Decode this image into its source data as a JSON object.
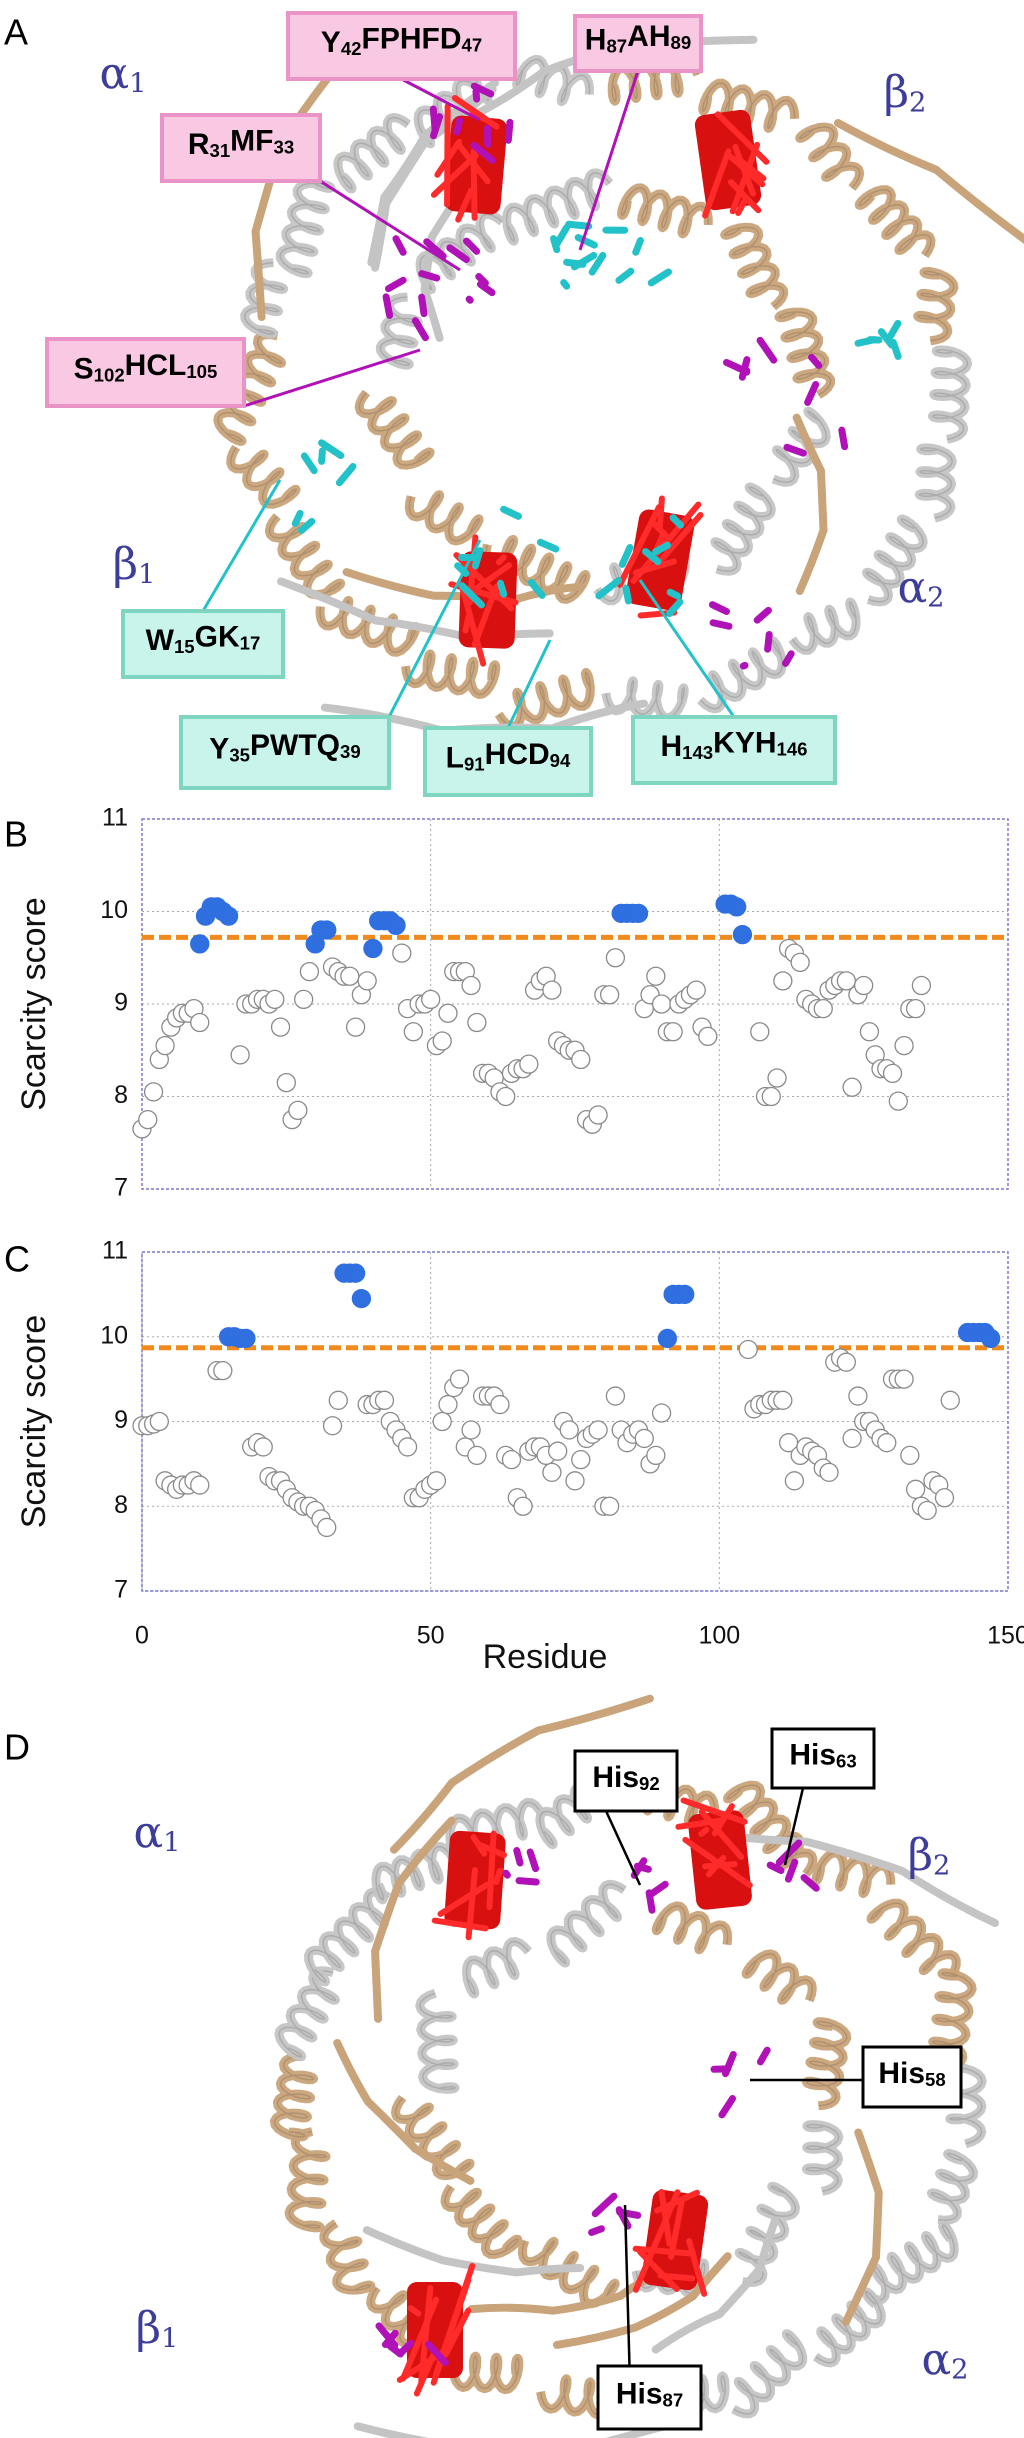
{
  "panel_labels": [
    "A",
    "B",
    "C",
    "D"
  ],
  "structure_a": {
    "chain_labels": [
      [
        "α",
        "1"
      ],
      [
        "β",
        "2"
      ],
      [
        "β",
        "1"
      ],
      [
        "α",
        "2"
      ]
    ],
    "pink_sites": [
      [
        "Y",
        "42",
        "FPHFD",
        "47"
      ],
      [
        "H",
        "87",
        "AH",
        "89"
      ],
      [
        "R",
        "31",
        "MF",
        "33"
      ],
      [
        "S",
        "102",
        "HCL",
        "105"
      ]
    ],
    "cyan_sites": [
      [
        "W",
        "15",
        "GK",
        "17"
      ],
      [
        "Y",
        "35",
        "PWTQ",
        "39"
      ],
      [
        "L",
        "91",
        "HCD",
        "94"
      ],
      [
        "H",
        "143",
        "KYH",
        "146"
      ]
    ]
  },
  "structure_d": {
    "chain_labels": [
      [
        "α",
        "1"
      ],
      [
        "β",
        "2"
      ],
      [
        "β",
        "1"
      ],
      [
        "α",
        "2"
      ]
    ],
    "sites": [
      [
        "His",
        "92"
      ],
      [
        "His",
        "63"
      ],
      [
        "His",
        "58"
      ],
      [
        "His",
        "87"
      ]
    ]
  },
  "chart_data": [
    {
      "type": "scatter",
      "y_label": "Scarcity score",
      "xlim": [
        0,
        150
      ],
      "xticks": [
        0,
        50,
        100,
        150
      ],
      "ylim": [
        7,
        11
      ],
      "yticks": [
        7,
        8,
        9,
        10,
        11
      ],
      "grid": true,
      "threshold": 9.72,
      "threshold_color": "#f08a1c",
      "series": [
        {
          "color": "#ffffff",
          "x": [
            0,
            1,
            2,
            3,
            4,
            5,
            6,
            7,
            8,
            9,
            10,
            17,
            18,
            19,
            20,
            21,
            22,
            23,
            24,
            25,
            26,
            27,
            28,
            29,
            33,
            34,
            35,
            36,
            37,
            38,
            39,
            45,
            46,
            47,
            48,
            49,
            50,
            51,
            52,
            53,
            54,
            55,
            56,
            57,
            58,
            59,
            60,
            61,
            62,
            63,
            64,
            65,
            66,
            67,
            68,
            69,
            70,
            71,
            72,
            73,
            74,
            75,
            76,
            77,
            78,
            79,
            80,
            81,
            82,
            87,
            88,
            89,
            90,
            91,
            92,
            93,
            94,
            95,
            96,
            97,
            98,
            107,
            108,
            109,
            110,
            111,
            112,
            113,
            114,
            115,
            116,
            117,
            118,
            119,
            120,
            121,
            122,
            123,
            124,
            125,
            126,
            127,
            128,
            129,
            130,
            131,
            132,
            133,
            134,
            135
          ],
          "values": [
            7.65,
            7.75,
            8.05,
            8.4,
            8.55,
            8.75,
            8.85,
            8.9,
            8.9,
            8.95,
            8.8,
            8.45,
            9.0,
            9.0,
            9.05,
            9.05,
            9.0,
            9.05,
            8.75,
            8.15,
            7.75,
            7.85,
            9.05,
            9.35,
            9.4,
            9.35,
            9.3,
            9.3,
            8.75,
            9.1,
            9.25,
            9.55,
            8.95,
            8.7,
            9.0,
            9.0,
            9.05,
            8.55,
            8.6,
            8.9,
            9.35,
            9.35,
            9.35,
            9.2,
            8.8,
            8.25,
            8.25,
            8.2,
            8.05,
            8.0,
            8.25,
            8.3,
            8.3,
            8.35,
            9.15,
            9.25,
            9.3,
            9.15,
            8.6,
            8.55,
            8.5,
            8.5,
            8.4,
            7.75,
            7.7,
            7.8,
            9.1,
            9.1,
            9.5,
            8.95,
            9.1,
            9.3,
            9.0,
            8.7,
            8.7,
            9.0,
            9.05,
            9.1,
            9.15,
            8.75,
            8.65,
            8.7,
            8.0,
            8.0,
            8.2,
            9.25,
            9.6,
            9.55,
            9.45,
            9.05,
            9.0,
            8.95,
            8.95,
            9.15,
            9.2,
            9.25,
            9.25,
            8.1,
            9.1,
            9.2,
            8.7,
            8.45,
            8.3,
            8.3,
            8.25,
            7.95,
            8.55,
            8.95,
            8.95,
            9.2
          ]
        },
        {
          "color": "#2f6fe0",
          "x": [
            10,
            11,
            12,
            13,
            14,
            15,
            30,
            31,
            32,
            40,
            41,
            42,
            43,
            44,
            83,
            84,
            85,
            86,
            101,
            102,
            103,
            104
          ],
          "values": [
            9.65,
            9.95,
            10.05,
            10.05,
            10.0,
            9.95,
            9.65,
            9.8,
            9.8,
            9.6,
            9.9,
            9.9,
            9.9,
            9.85,
            9.98,
            9.98,
            9.98,
            9.98,
            10.08,
            10.08,
            10.05,
            9.75
          ]
        }
      ]
    },
    {
      "type": "scatter",
      "y_label": "Scarcity score",
      "x_label": "Residue",
      "xlim": [
        0,
        150
      ],
      "xticks": [
        0,
        50,
        100,
        150
      ],
      "ylim": [
        7,
        11
      ],
      "yticks": [
        7,
        8,
        9,
        10,
        11
      ],
      "grid": true,
      "threshold": 9.87,
      "threshold_color": "#f08a1c",
      "series": [
        {
          "color": "#ffffff",
          "x": [
            0,
            1,
            2,
            3,
            4,
            5,
            6,
            7,
            8,
            9,
            10,
            13,
            14,
            19,
            20,
            21,
            22,
            23,
            24,
            25,
            26,
            27,
            28,
            29,
            30,
            31,
            32,
            33,
            34,
            39,
            40,
            41,
            42,
            43,
            44,
            45,
            46,
            47,
            48,
            49,
            50,
            51,
            52,
            53,
            54,
            55,
            56,
            57,
            58,
            59,
            60,
            61,
            62,
            63,
            64,
            65,
            66,
            67,
            68,
            69,
            70,
            71,
            72,
            73,
            74,
            75,
            76,
            77,
            78,
            79,
            80,
            81,
            82,
            83,
            84,
            85,
            86,
            87,
            88,
            89,
            90,
            105,
            106,
            107,
            108,
            109,
            110,
            111,
            112,
            113,
            114,
            115,
            116,
            117,
            118,
            119,
            120,
            121,
            122,
            123,
            124,
            125,
            126,
            127,
            128,
            129,
            130,
            131,
            132,
            133,
            134,
            135,
            136,
            137,
            138,
            139,
            140
          ],
          "values": [
            8.95,
            8.95,
            8.97,
            9.0,
            8.3,
            8.25,
            8.2,
            8.25,
            8.25,
            8.3,
            8.25,
            9.6,
            9.6,
            8.7,
            8.75,
            8.7,
            8.35,
            8.3,
            8.3,
            8.2,
            8.1,
            8.05,
            8.0,
            8.0,
            7.95,
            7.85,
            7.75,
            8.95,
            9.25,
            9.2,
            9.2,
            9.25,
            9.25,
            9.0,
            8.9,
            8.8,
            8.7,
            8.1,
            8.1,
            8.2,
            8.25,
            8.3,
            9.0,
            9.2,
            9.4,
            9.5,
            8.7,
            8.9,
            8.6,
            9.3,
            9.3,
            9.3,
            9.2,
            8.6,
            8.55,
            8.1,
            8.0,
            8.65,
            8.7,
            8.7,
            8.6,
            8.4,
            8.65,
            9.0,
            8.9,
            8.3,
            8.55,
            8.8,
            8.85,
            8.9,
            8.0,
            8.0,
            9.3,
            8.9,
            8.75,
            8.85,
            8.9,
            8.8,
            8.5,
            8.6,
            9.1,
            9.85,
            9.15,
            9.2,
            9.2,
            9.25,
            9.25,
            9.25,
            8.75,
            8.3,
            8.6,
            8.7,
            8.65,
            8.6,
            8.45,
            8.4,
            9.7,
            9.75,
            9.7,
            8.8,
            9.3,
            9.0,
            9.0,
            8.9,
            8.8,
            8.75,
            9.5,
            9.5,
            9.5,
            8.6,
            8.2,
            8.0,
            7.95,
            8.3,
            8.25,
            8.1,
            9.25
          ]
        },
        {
          "color": "#2f6fe0",
          "x": [
            15,
            16,
            17,
            18,
            35,
            36,
            37,
            38,
            91,
            92,
            93,
            94,
            143,
            144,
            145,
            146,
            147
          ],
          "values": [
            10.0,
            10.0,
            9.98,
            9.98,
            10.75,
            10.75,
            10.75,
            10.45,
            9.98,
            10.5,
            10.5,
            10.5,
            10.05,
            10.05,
            10.05,
            10.05,
            9.98
          ]
        }
      ]
    }
  ]
}
